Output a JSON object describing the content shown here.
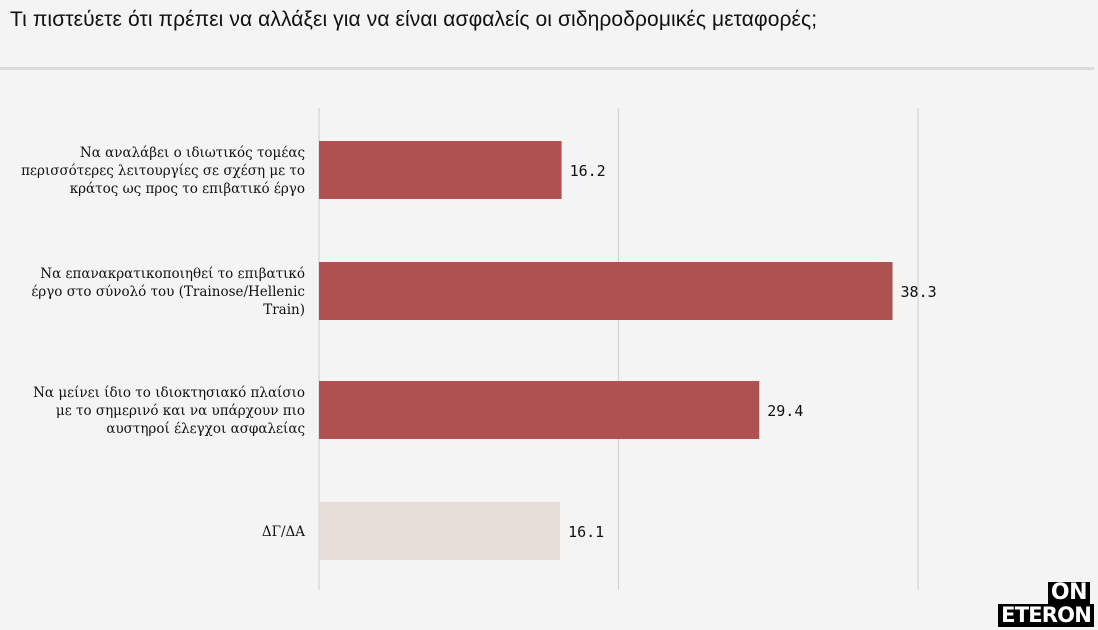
{
  "title": "Τι πιστεύετε ότι πρέπει να αλλάξει για να είναι ασφαλείς οι σιδηροδρομικές μεταφορές;",
  "logo": {
    "line1": "ON",
    "line2": "ETERON"
  },
  "chart_data": {
    "type": "bar",
    "orientation": "horizontal",
    "categories": [
      [
        "Να αναλάβει ο ιδιωτικός τομέας",
        "περισσότερες λειτουργίες σε σχέση με το",
        "κράτος ως προς το επιβατικό έργο"
      ],
      [
        "Να επανακρατικοποιηθεί το επιβατικό",
        "έργο στο σύνολό του (Trainose/Hellenic",
        "Train)"
      ],
      [
        "Να μείνει ίδιο το ιδιοκτησιακό πλαίσιο",
        "με το σημερινό και να υπάρχουν πιο",
        "αυστηροί έλεγχοι ασφαλείας"
      ],
      [
        "ΔΓ/ΔΑ"
      ]
    ],
    "values": [
      16.2,
      38.3,
      29.4,
      16.1
    ],
    "value_labels": [
      "16.2",
      "38.3",
      "29.4",
      "16.1"
    ],
    "colors": [
      "#ad5151",
      "#ad5151",
      "#ad5151",
      "#e6dfd7"
    ],
    "xlim": [
      0,
      40
    ],
    "gridlines": [
      0,
      20,
      40
    ],
    "grid": true,
    "xlabel": "",
    "ylabel": ""
  }
}
